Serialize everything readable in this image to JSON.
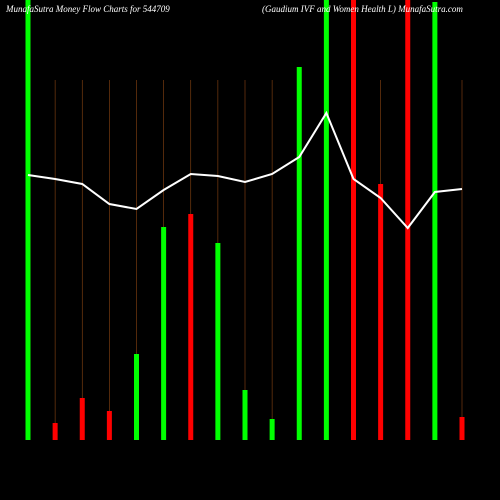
{
  "chart_data": {
    "type": "bar",
    "title": "MunafaSutra  Money Flow  Charts for 544709",
    "subtitle": "(Gaudium IVF and Women Health L) MunafaSutra.com",
    "categories": [
      null,
      null,
      null,
      null,
      null,
      null,
      null,
      null,
      null,
      null,
      null,
      null,
      null,
      null,
      null,
      null,
      null
    ],
    "series": [
      {
        "values": [
          440,
          17,
          42,
          29,
          86,
          213,
          226,
          197,
          50,
          21,
          373,
          440,
          440,
          256,
          440,
          438,
          23
        ],
        "colors": [
          "#00ff00",
          "#ff0000",
          "#ff0000",
          "#ff0000",
          "#00ff00",
          "#00ff00",
          "#ff0000",
          "#00ff00",
          "#00ff00",
          "#00ff00",
          "#00ff00",
          "#00ff00",
          "#ff0000",
          "#ff0000",
          "#ff0000",
          "#00ff00",
          "#ff0000"
        ]
      },
      {
        "type": "line",
        "color": "#ffffff",
        "values": [
          265,
          261,
          256,
          236,
          231,
          250,
          266,
          264,
          258,
          266,
          283,
          327,
          261,
          242,
          212,
          248,
          251
        ]
      }
    ],
    "ylim": [
      0,
      440
    ]
  }
}
